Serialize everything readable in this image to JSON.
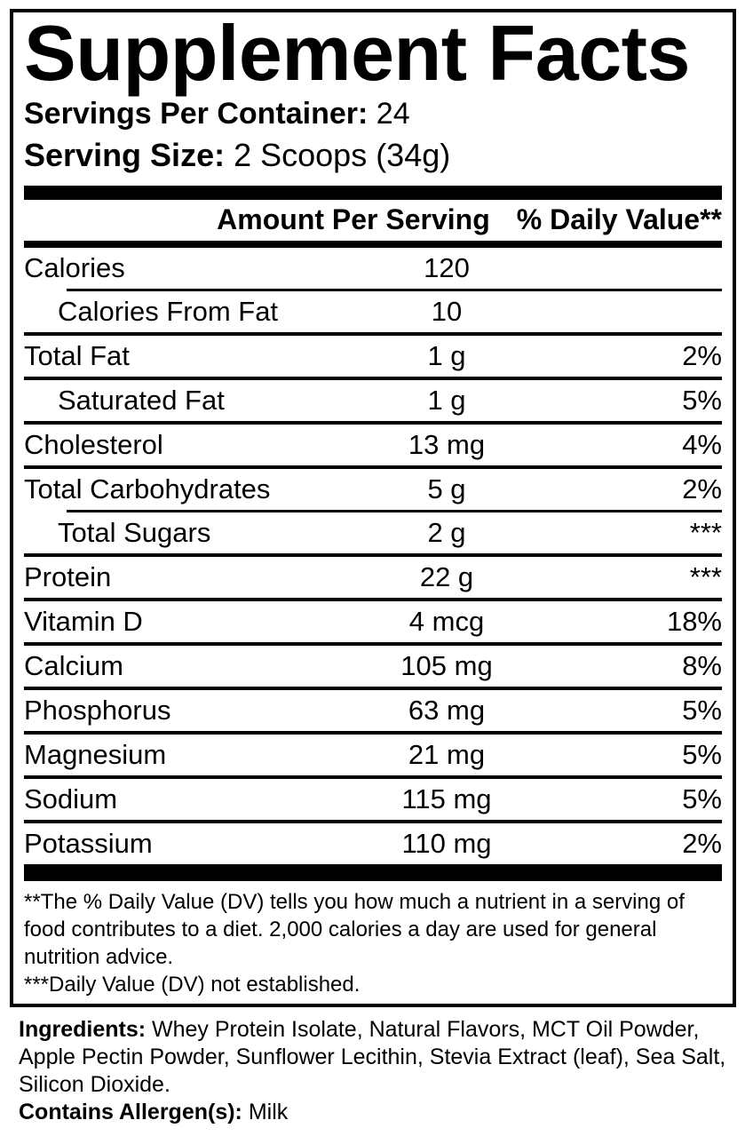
{
  "colors": {
    "foreground": "#000000",
    "background": "#ffffff"
  },
  "panel": {
    "title": "Supplement Facts",
    "servings_label": "Servings Per Container:",
    "servings_value": "24",
    "serving_size_label": "Serving Size:",
    "serving_size_value": "2 Scoops (34g)"
  },
  "table": {
    "col_amount": "Amount Per Serving",
    "col_dv": "% Daily Value**",
    "rows": [
      {
        "label": "Calories",
        "amount": "120",
        "dv": "",
        "indent": false,
        "sep": "none"
      },
      {
        "label": "Calories From Fat",
        "amount": "10",
        "dv": "",
        "indent": true,
        "sep": "indent"
      },
      {
        "label": "Total Fat",
        "amount": "1 g",
        "dv": "2%",
        "indent": false,
        "sep": "full"
      },
      {
        "label": "Saturated Fat",
        "amount": "1 g",
        "dv": "5%",
        "indent": true,
        "sep": "full"
      },
      {
        "label": "Cholesterol",
        "amount": "13 mg",
        "dv": "4%",
        "indent": false,
        "sep": "full"
      },
      {
        "label": "Total Carbohydrates",
        "amount": "5 g",
        "dv": "2%",
        "indent": false,
        "sep": "full"
      },
      {
        "label": "Total Sugars",
        "amount": "2 g",
        "dv": "***",
        "indent": true,
        "sep": "indent"
      },
      {
        "label": "Protein",
        "amount": "22 g",
        "dv": "***",
        "indent": false,
        "sep": "full"
      },
      {
        "label": "Vitamin D",
        "amount": "4 mcg",
        "dv": "18%",
        "indent": false,
        "sep": "full"
      },
      {
        "label": "Calcium",
        "amount": "105 mg",
        "dv": "8%",
        "indent": false,
        "sep": "full"
      },
      {
        "label": "Phosphorus",
        "amount": "63 mg",
        "dv": "5%",
        "indent": false,
        "sep": "full"
      },
      {
        "label": "Magnesium",
        "amount": "21 mg",
        "dv": "5%",
        "indent": false,
        "sep": "full"
      },
      {
        "label": "Sodium",
        "amount": "115 mg",
        "dv": "5%",
        "indent": false,
        "sep": "full"
      },
      {
        "label": "Potassium",
        "amount": "110 mg",
        "dv": "2%",
        "indent": false,
        "sep": "full"
      }
    ]
  },
  "footnotes": {
    "dv_note": "**The % Daily Value (DV) tells you how much a nutrient in a serving of food contributes to a diet. 2,000 calories a day are used for general nutrition advice.",
    "not_established_note": "***Daily Value (DV) not established."
  },
  "ingredients": {
    "label": "Ingredients:",
    "list": "Whey Protein Isolate, Natural Flavors, MCT Oil Powder, Apple Pectin Powder, Sunflower Lecithin, Stevia Extract (leaf), Sea Salt, Silicon Dioxide.",
    "allergen_label": "Contains Allergen(s):",
    "allergen_value": "Milk"
  }
}
